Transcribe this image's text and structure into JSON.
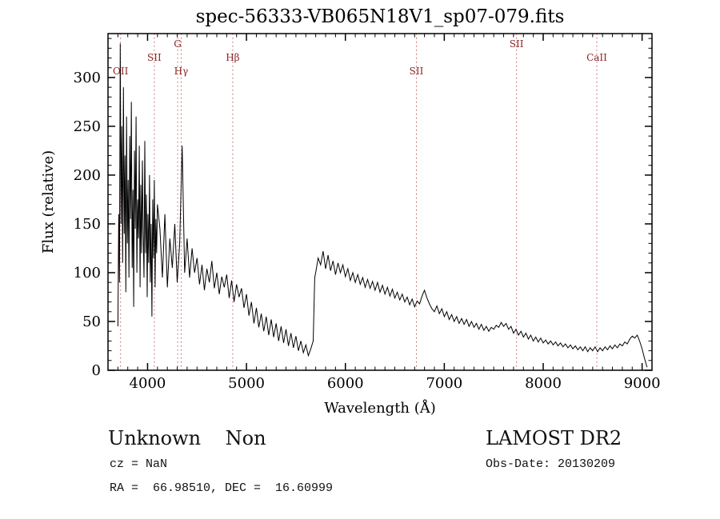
{
  "annotations": {
    "class_label": "Unknown    Non",
    "survey": "LAMOST DR2",
    "cz": "cz = NaN",
    "obs_date": "Obs-Date: 20130209",
    "ra_dec": "RA =  66.98510, DEC =  16.60999"
  },
  "chart_data": {
    "type": "line",
    "title": "spec-56333-VB065N18V1_sp07-079.fits",
    "xlabel": "Wavelength (Å)",
    "ylabel": "Flux (relative)",
    "xlim": [
      3600,
      9100
    ],
    "ylim": [
      0,
      345
    ],
    "x_major_ticks": [
      4000,
      5000,
      6000,
      7000,
      8000,
      9000
    ],
    "x_minor_step": 100,
    "y_major_ticks": [
      0,
      50,
      100,
      150,
      200,
      250,
      300
    ],
    "y_minor_step": 10,
    "grid": false,
    "legend": "none",
    "line_color": "#000000",
    "marker_color": "#bb5c5c",
    "spectral_lines": [
      {
        "label": "OII",
        "wavelength": 3727,
        "row": 2
      },
      {
        "label": "SII",
        "wavelength": 4068,
        "row": 1
      },
      {
        "label": "G",
        "wavelength": 4304,
        "row": 0
      },
      {
        "label": "Hγ",
        "wavelength": 4340,
        "row": 2
      },
      {
        "label": "Hβ",
        "wavelength": 4861,
        "row": 1
      },
      {
        "label": "SII",
        "wavelength": 6718,
        "row": 2
      },
      {
        "label": "SII",
        "wavelength": 7730,
        "row": 0
      },
      {
        "label": "CaII",
        "wavelength": 8542,
        "row": 1
      }
    ],
    "points": [
      [
        3700,
        45
      ],
      [
        3708,
        160
      ],
      [
        3716,
        90
      ],
      [
        3724,
        335
      ],
      [
        3732,
        150
      ],
      [
        3740,
        250
      ],
      [
        3748,
        110
      ],
      [
        3756,
        290
      ],
      [
        3764,
        140
      ],
      [
        3772,
        220
      ],
      [
        3780,
        80
      ],
      [
        3788,
        260
      ],
      [
        3796,
        130
      ],
      [
        3804,
        195
      ],
      [
        3812,
        95
      ],
      [
        3820,
        240
      ],
      [
        3828,
        155
      ],
      [
        3836,
        275
      ],
      [
        3844,
        105
      ],
      [
        3852,
        185
      ],
      [
        3860,
        65
      ],
      [
        3868,
        225
      ],
      [
        3876,
        145
      ],
      [
        3884,
        260
      ],
      [
        3892,
        100
      ],
      [
        3900,
        175
      ],
      [
        3908,
        135
      ],
      [
        3916,
        230
      ],
      [
        3924,
        85
      ],
      [
        3932,
        190
      ],
      [
        3940,
        120
      ],
      [
        3948,
        215
      ],
      [
        3956,
        140
      ],
      [
        3964,
        95
      ],
      [
        3972,
        235
      ],
      [
        3980,
        120
      ],
      [
        3988,
        180
      ],
      [
        3996,
        75
      ],
      [
        4004,
        160
      ],
      [
        4012,
        110
      ],
      [
        4020,
        200
      ],
      [
        4028,
        90
      ],
      [
        4036,
        150
      ],
      [
        4044,
        55
      ],
      [
        4052,
        175
      ],
      [
        4060,
        115
      ],
      [
        4068,
        195
      ],
      [
        4076,
        85
      ],
      [
        4084,
        155
      ],
      [
        4092,
        120
      ],
      [
        4100,
        170
      ],
      [
        4125,
        145
      ],
      [
        4150,
        95
      ],
      [
        4175,
        160
      ],
      [
        4200,
        85
      ],
      [
        4225,
        135
      ],
      [
        4250,
        105
      ],
      [
        4275,
        150
      ],
      [
        4300,
        90
      ],
      [
        4325,
        130
      ],
      [
        4350,
        230
      ],
      [
        4375,
        100
      ],
      [
        4400,
        135
      ],
      [
        4425,
        95
      ],
      [
        4450,
        125
      ],
      [
        4475,
        100
      ],
      [
        4500,
        115
      ],
      [
        4525,
        88
      ],
      [
        4550,
        108
      ],
      [
        4575,
        82
      ],
      [
        4600,
        104
      ],
      [
        4625,
        90
      ],
      [
        4650,
        112
      ],
      [
        4675,
        84
      ],
      [
        4700,
        100
      ],
      [
        4725,
        78
      ],
      [
        4750,
        96
      ],
      [
        4775,
        85
      ],
      [
        4800,
        98
      ],
      [
        4825,
        74
      ],
      [
        4850,
        92
      ],
      [
        4875,
        70
      ],
      [
        4900,
        88
      ],
      [
        4925,
        75
      ],
      [
        4950,
        84
      ],
      [
        4975,
        64
      ],
      [
        5000,
        78
      ],
      [
        5025,
        56
      ],
      [
        5050,
        70
      ],
      [
        5075,
        48
      ],
      [
        5100,
        64
      ],
      [
        5125,
        44
      ],
      [
        5150,
        58
      ],
      [
        5175,
        40
      ],
      [
        5200,
        55
      ],
      [
        5225,
        36
      ],
      [
        5250,
        52
      ],
      [
        5275,
        34
      ],
      [
        5300,
        48
      ],
      [
        5325,
        30
      ],
      [
        5350,
        45
      ],
      [
        5375,
        28
      ],
      [
        5400,
        42
      ],
      [
        5425,
        25
      ],
      [
        5450,
        38
      ],
      [
        5475,
        23
      ],
      [
        5500,
        35
      ],
      [
        5525,
        20
      ],
      [
        5550,
        30
      ],
      [
        5575,
        18
      ],
      [
        5600,
        26
      ],
      [
        5625,
        15
      ],
      [
        5650,
        22
      ],
      [
        5675,
        30
      ],
      [
        5690,
        95
      ],
      [
        5700,
        100
      ],
      [
        5725,
        115
      ],
      [
        5750,
        108
      ],
      [
        5775,
        122
      ],
      [
        5800,
        104
      ],
      [
        5825,
        118
      ],
      [
        5850,
        102
      ],
      [
        5875,
        112
      ],
      [
        5900,
        98
      ],
      [
        5925,
        110
      ],
      [
        5950,
        100
      ],
      [
        5975,
        108
      ],
      [
        6000,
        96
      ],
      [
        6025,
        104
      ],
      [
        6050,
        92
      ],
      [
        6075,
        100
      ],
      [
        6100,
        90
      ],
      [
        6125,
        98
      ],
      [
        6150,
        88
      ],
      [
        6175,
        95
      ],
      [
        6200,
        85
      ],
      [
        6225,
        93
      ],
      [
        6250,
        84
      ],
      [
        6275,
        91
      ],
      [
        6300,
        82
      ],
      [
        6325,
        90
      ],
      [
        6350,
        80
      ],
      [
        6375,
        87
      ],
      [
        6400,
        78
      ],
      [
        6425,
        85
      ],
      [
        6450,
        76
      ],
      [
        6475,
        83
      ],
      [
        6500,
        74
      ],
      [
        6525,
        80
      ],
      [
        6550,
        72
      ],
      [
        6575,
        78
      ],
      [
        6600,
        70
      ],
      [
        6625,
        75
      ],
      [
        6650,
        67
      ],
      [
        6675,
        73
      ],
      [
        6700,
        65
      ],
      [
        6725,
        71
      ],
      [
        6750,
        68
      ],
      [
        6775,
        76
      ],
      [
        6800,
        82
      ],
      [
        6825,
        74
      ],
      [
        6850,
        68
      ],
      [
        6875,
        63
      ],
      [
        6900,
        60
      ],
      [
        6925,
        66
      ],
      [
        6950,
        58
      ],
      [
        6975,
        63
      ],
      [
        7000,
        55
      ],
      [
        7025,
        60
      ],
      [
        7050,
        52
      ],
      [
        7075,
        57
      ],
      [
        7100,
        50
      ],
      [
        7125,
        55
      ],
      [
        7150,
        48
      ],
      [
        7175,
        53
      ],
      [
        7200,
        47
      ],
      [
        7225,
        52
      ],
      [
        7250,
        45
      ],
      [
        7275,
        50
      ],
      [
        7300,
        44
      ],
      [
        7325,
        48
      ],
      [
        7350,
        42
      ],
      [
        7375,
        47
      ],
      [
        7400,
        41
      ],
      [
        7425,
        45
      ],
      [
        7450,
        40
      ],
      [
        7475,
        44
      ],
      [
        7500,
        42
      ],
      [
        7525,
        46
      ],
      [
        7550,
        44
      ],
      [
        7575,
        49
      ],
      [
        7600,
        45
      ],
      [
        7625,
        48
      ],
      [
        7650,
        42
      ],
      [
        7675,
        45
      ],
      [
        7700,
        38
      ],
      [
        7725,
        42
      ],
      [
        7750,
        36
      ],
      [
        7775,
        40
      ],
      [
        7800,
        34
      ],
      [
        7825,
        38
      ],
      [
        7850,
        32
      ],
      [
        7875,
        36
      ],
      [
        7900,
        30
      ],
      [
        7925,
        34
      ],
      [
        7950,
        29
      ],
      [
        7975,
        33
      ],
      [
        8000,
        28
      ],
      [
        8025,
        31
      ],
      [
        8050,
        27
      ],
      [
        8075,
        30
      ],
      [
        8100,
        26
      ],
      [
        8125,
        29
      ],
      [
        8150,
        25
      ],
      [
        8175,
        28
      ],
      [
        8200,
        24
      ],
      [
        8225,
        27
      ],
      [
        8250,
        23
      ],
      [
        8275,
        26
      ],
      [
        8300,
        22
      ],
      [
        8325,
        25
      ],
      [
        8350,
        21
      ],
      [
        8375,
        24
      ],
      [
        8400,
        20
      ],
      [
        8425,
        24
      ],
      [
        8450,
        19
      ],
      [
        8475,
        23
      ],
      [
        8500,
        20
      ],
      [
        8525,
        24
      ],
      [
        8550,
        19
      ],
      [
        8575,
        23
      ],
      [
        8600,
        20
      ],
      [
        8625,
        24
      ],
      [
        8650,
        21
      ],
      [
        8675,
        25
      ],
      [
        8700,
        22
      ],
      [
        8725,
        26
      ],
      [
        8750,
        23
      ],
      [
        8775,
        27
      ],
      [
        8800,
        25
      ],
      [
        8825,
        29
      ],
      [
        8850,
        27
      ],
      [
        8875,
        32
      ],
      [
        8900,
        35
      ],
      [
        8925,
        33
      ],
      [
        8950,
        36
      ],
      [
        8975,
        30
      ],
      [
        9000,
        22
      ],
      [
        9025,
        12
      ],
      [
        9050,
        3
      ]
    ]
  }
}
